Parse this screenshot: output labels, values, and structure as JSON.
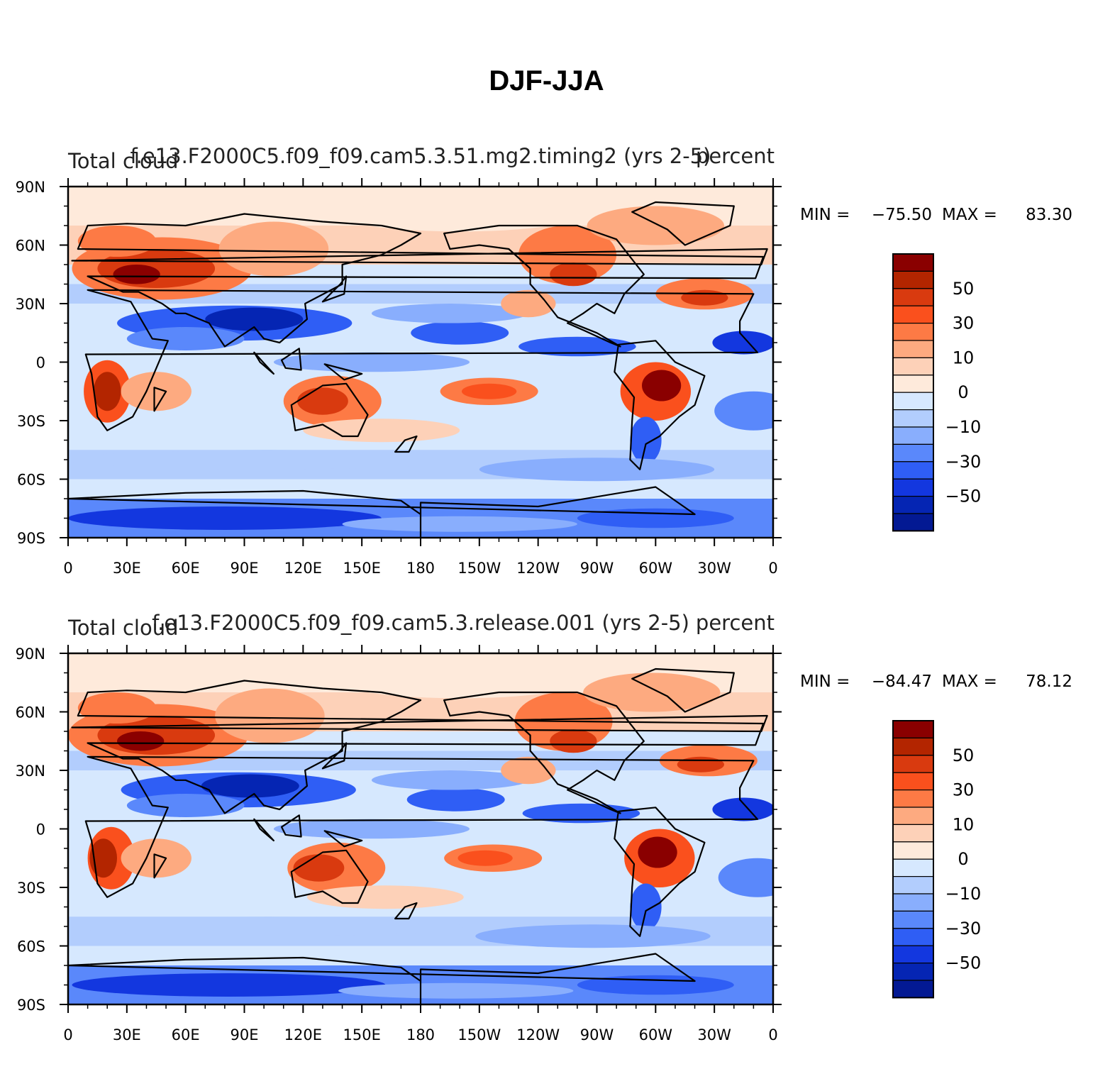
{
  "title": "DJF-JJA",
  "chart_data": [
    {
      "type": "heatmap",
      "title": "f.e13.F2000C5.f09_f09.cam5.3.51.mg2.timing2 (yrs 2-5)",
      "left_string": "Total cloud",
      "right_string": "percent",
      "min_label": "MIN =",
      "min_value": "−75.50",
      "max_label": "MAX =",
      "max_value": "83.30",
      "xlim": [
        0,
        360
      ],
      "ylim": [
        -90,
        90
      ],
      "xticks": [
        "0",
        "30E",
        "60E",
        "90E",
        "120E",
        "150E",
        "180",
        "150W",
        "120W",
        "90W",
        "60W",
        "30W",
        "0"
      ],
      "yticks": [
        "90N",
        "60N",
        "30N",
        "0",
        "30S",
        "60S",
        "90S"
      ]
    },
    {
      "type": "heatmap",
      "title": "f.e13.F2000C5.f09_f09.cam5.3.release.001 (yrs 2-5)",
      "left_string": "Total cloud",
      "right_string": "percent",
      "min_label": "MIN =",
      "min_value": "−84.47",
      "max_label": "MAX =",
      "max_value": "78.12",
      "xlim": [
        0,
        360
      ],
      "ylim": [
        -90,
        90
      ],
      "xticks": [
        "0",
        "30E",
        "60E",
        "90E",
        "120E",
        "150E",
        "180",
        "150W",
        "120W",
        "90W",
        "60W",
        "30W",
        "0"
      ],
      "yticks": [
        "90N",
        "60N",
        "30N",
        "0",
        "30S",
        "60S",
        "90S"
      ]
    }
  ],
  "colorbar": {
    "levels": [
      "50",
      "30",
      "10",
      "0",
      "−10",
      "−30",
      "−50"
    ],
    "colors": [
      "#8a0000",
      "#b32500",
      "#d93a0f",
      "#fa501d",
      "#fd7a45",
      "#fdaa80",
      "#fdd1b8",
      "#feeadb",
      "#d6e8fe",
      "#b2cdfd",
      "#89aefd",
      "#5a88fb",
      "#2f5ef5",
      "#1337df",
      "#0525b3",
      "#031993"
    ]
  },
  "colors": {
    "land_outline": "#000000",
    "warm": "#e8461a",
    "cool": "#2f5ef5"
  }
}
